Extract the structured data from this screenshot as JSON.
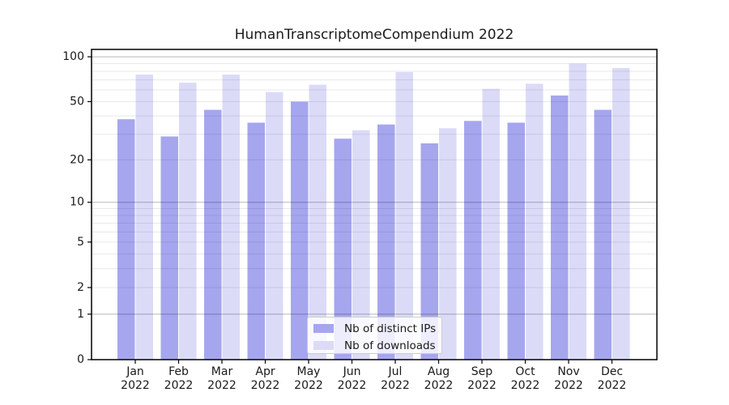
{
  "chart_data": {
    "type": "bar",
    "title": "HumanTranscriptomeCompendium 2022",
    "categories": [
      "Jan 2022",
      "Feb 2022",
      "Mar 2022",
      "Apr 2022",
      "May 2022",
      "Jun 2022",
      "Jul 2022",
      "Aug 2022",
      "Sep 2022",
      "Oct 2022",
      "Nov 2022",
      "Dec 2022"
    ],
    "series": [
      {
        "name": "Nb of distinct IPs",
        "color": "#a6a6ef",
        "values": [
          38,
          29,
          44,
          36,
          50,
          28,
          35,
          26,
          37,
          36,
          55,
          44
        ]
      },
      {
        "name": "Nb of downloads",
        "color": "#dbdbf8",
        "values": [
          76,
          67,
          76,
          58,
          65,
          32,
          79,
          33,
          61,
          66,
          90,
          84
        ]
      }
    ],
    "yscale": "log1p",
    "ylim": [
      0,
      112
    ],
    "yticks": [
      100,
      50,
      20,
      10,
      5,
      2,
      1,
      0
    ],
    "grid_major_values": [
      1,
      10,
      100
    ],
    "grid_minor_values": [
      2,
      3,
      4,
      5,
      6,
      7,
      8,
      9,
      20,
      30,
      40,
      50,
      60,
      70,
      80,
      90
    ],
    "grid": "horizontal",
    "legend_position": "bottom-center",
    "xlabel": "",
    "ylabel": ""
  },
  "colors": {
    "axis": "#000000",
    "tick_label": "#1a1a1a",
    "grid_major": "rgba(0,0,0,0.28)",
    "grid_minor": "rgba(0,0,0,0.09)",
    "background": "#ffffff"
  }
}
